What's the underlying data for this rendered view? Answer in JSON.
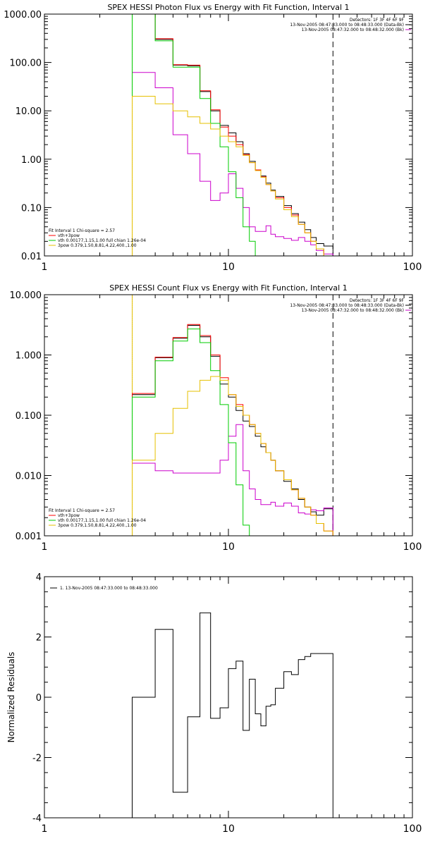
{
  "chart_data": [
    {
      "type": "line",
      "title": "SPEX HESSI Photon Flux vs Energy with Fit Function, Interval 1",
      "xscale": "log",
      "yscale": "log",
      "xlim": [
        1,
        100
      ],
      "ylim": [
        0.01,
        1000
      ],
      "x_ticks": [
        1,
        10,
        100
      ],
      "x_tick_labels": [
        "1",
        "10",
        "100"
      ],
      "y_ticks": [
        0.01,
        0.1,
        1,
        10,
        100,
        1000
      ],
      "y_tick_labels": [
        "0.01",
        "0.10",
        "1.00",
        "10.00",
        "100.00",
        "1000.00"
      ],
      "header_lines": [
        "Detectors: 1F 3F 4F 6F 9F",
        "13-Nov-2005 08:47:33.000 to 08:48:33.000 (Data-Bk)",
        "13-Nov-2005 08:47:32.000 to 08:48:32.000 (Bk)"
      ],
      "header_colors": [
        "",
        "#000000",
        "#cc00cc"
      ],
      "fit_info": [
        "Fit Interval 1   Chi-square = 2.57",
        "vth+3pow",
        "vth 0.00177,1.15,1.00  full chian 1.26e-04",
        "3pow 0.379,1.50,8.81,4.22,400.,1.00"
      ],
      "fit_info_colors": [
        "#000000",
        "#ff0000",
        "#00cc00",
        "#e6c000"
      ],
      "vlines": [
        {
          "x": 3,
          "style": "dotted",
          "color": "#000000"
        },
        {
          "x": 3,
          "style": "solid",
          "color": "#e6c000"
        },
        {
          "x": 37,
          "style": "dashed",
          "color": "#000000"
        }
      ],
      "edges": [
        3,
        4,
        5,
        6,
        7,
        8,
        9,
        10,
        11,
        12,
        13,
        14,
        15,
        16,
        17,
        18,
        20,
        22,
        24,
        26,
        28,
        30,
        33,
        37
      ],
      "series": [
        {
          "name": "Data-Bk",
          "color": "#000000",
          "values": [
            1000,
            300,
            88,
            85,
            25,
            10,
            5.0,
            3.5,
            2.3,
            1.3,
            0.9,
            0.6,
            0.45,
            0.32,
            0.23,
            0.17,
            0.11,
            0.075,
            0.05,
            0.035,
            0.024,
            0.018,
            0.016
          ]
        },
        {
          "name": "Bk",
          "color": "#cc00cc",
          "values": [
            62,
            30,
            3.2,
            1.3,
            0.35,
            0.14,
            0.2,
            0.5,
            0.25,
            0.1,
            0.04,
            0.032,
            0.032,
            0.042,
            0.028,
            0.025,
            0.023,
            0.021,
            0.024,
            0.02,
            0.017,
            0.013,
            0.011
          ]
        },
        {
          "name": "vth+3pow",
          "color": "#ff0000",
          "values": [
            1000,
            310,
            90,
            88,
            26,
            10.5,
            4.6,
            3.0,
            2.0,
            1.25,
            0.85,
            0.6,
            0.43,
            0.3,
            0.22,
            0.16,
            0.1,
            0.07,
            0.045,
            0.03,
            0.02,
            0.014,
            0.01
          ]
        },
        {
          "name": "vth",
          "color": "#00cc00",
          "values": [
            1000,
            280,
            80,
            80,
            18,
            5.5,
            1.8,
            0.55,
            0.16,
            0.04,
            0.02,
            0.01
          ]
        },
        {
          "name": "3pow",
          "color": "#e6c000",
          "values": [
            20,
            14,
            10,
            7.5,
            5.5,
            4.2,
            3.0,
            2.3,
            1.8,
            1.2,
            0.85,
            0.58,
            0.42,
            0.3,
            0.22,
            0.15,
            0.09,
            0.065,
            0.045,
            0.03,
            0.02,
            0.014,
            0.01
          ]
        }
      ]
    },
    {
      "type": "line",
      "title": "SPEX HESSI Count Flux vs Energy with Fit Function, Interval 1",
      "xscale": "log",
      "yscale": "log",
      "xlim": [
        1,
        100
      ],
      "ylim": [
        0.001,
        10
      ],
      "x_ticks": [
        1,
        10,
        100
      ],
      "x_tick_labels": [
        "1",
        "10",
        "100"
      ],
      "y_ticks": [
        0.001,
        0.01,
        0.1,
        1,
        10
      ],
      "y_tick_labels": [
        "0.001",
        "0.010",
        "0.100",
        "1.000",
        "10.000"
      ],
      "header_lines": [
        "Detectors: 1F 3F 4F 6F 9F",
        "13-Nov-2005 08:47:33.000 to 08:48:33.000 (Data-Bk)",
        "13-Nov-2005 08:47:32.000 to 08:48:32.000 (Bk)"
      ],
      "header_colors": [
        "",
        "#000000",
        "#cc00cc"
      ],
      "fit_info": [
        "Fit Interval 1   Chi-square = 2.57",
        "vth+3pow",
        "vth 0.00177,1.15,1.00  full chian 1.26e-04",
        "3pow 0.379,1.50,8.81,4.22,400.,1.00"
      ],
      "fit_info_colors": [
        "#000000",
        "#ff0000",
        "#00cc00",
        "#e6c000"
      ],
      "vlines": [
        {
          "x": 3,
          "style": "dotted",
          "color": "#000000"
        },
        {
          "x": 3,
          "style": "solid",
          "color": "#e6c000"
        },
        {
          "x": 37,
          "style": "dashed",
          "color": "#000000"
        }
      ],
      "edges": [
        3,
        4,
        5,
        6,
        7,
        8,
        9,
        10,
        11,
        12,
        13,
        14,
        15,
        16,
        17,
        18,
        20,
        22,
        24,
        26,
        28,
        30,
        33,
        37
      ],
      "series": [
        {
          "name": "Data-Bk",
          "color": "#000000",
          "values": [
            0.22,
            0.9,
            1.9,
            3.1,
            2.0,
            0.95,
            0.33,
            0.2,
            0.12,
            0.08,
            0.065,
            0.045,
            0.03,
            0.024,
            0.018,
            0.012,
            0.008,
            0.006,
            0.004,
            0.003,
            0.0025,
            0.0022,
            0.0028
          ]
        },
        {
          "name": "Bk",
          "color": "#cc00cc",
          "values": [
            0.016,
            0.012,
            0.011,
            0.011,
            0.011,
            0.011,
            0.018,
            0.045,
            0.07,
            0.012,
            0.006,
            0.004,
            0.0033,
            0.0033,
            0.0036,
            0.0031,
            0.0035,
            0.0031,
            0.0024,
            0.0023,
            0.0027,
            0.0026,
            0.0029
          ]
        },
        {
          "name": "vth+3pow",
          "color": "#ff0000",
          "values": [
            0.23,
            0.92,
            1.95,
            3.2,
            2.1,
            1.0,
            0.42,
            0.22,
            0.15,
            0.1,
            0.07,
            0.05,
            0.034,
            0.024,
            0.018,
            0.012,
            0.0085,
            0.0058,
            0.0042,
            0.003,
            0.0022,
            0.0016,
            0.0012
          ]
        },
        {
          "name": "vth",
          "color": "#00cc00",
          "values": [
            0.2,
            0.8,
            1.7,
            2.7,
            1.6,
            0.55,
            0.15,
            0.035,
            0.007,
            0.0015
          ]
        },
        {
          "name": "3pow",
          "color": "#e6c000",
          "values": [
            0.018,
            0.05,
            0.13,
            0.25,
            0.38,
            0.44,
            0.38,
            0.22,
            0.14,
            0.1,
            0.07,
            0.05,
            0.034,
            0.024,
            0.018,
            0.012,
            0.0085,
            0.0058,
            0.0042,
            0.003,
            0.0022,
            0.0016,
            0.0012
          ]
        }
      ]
    },
    {
      "type": "line",
      "title": "",
      "xscale": "log",
      "yscale": "linear",
      "xlim": [
        1,
        100
      ],
      "ylim": [
        -4,
        4
      ],
      "ylabel": "Normalized Residuals",
      "x_ticks": [
        1,
        10,
        100
      ],
      "x_tick_labels": [
        "1",
        "10",
        "100"
      ],
      "y_ticks": [
        -4,
        -2,
        0,
        2,
        4
      ],
      "y_tick_labels": [
        "-4",
        "-2",
        "0",
        "2",
        "4"
      ],
      "legend": "1. 13-Nov-2005 08:47:33.000 to 08:48:33.000",
      "edges": [
        3,
        4,
        5,
        6,
        7,
        8,
        9,
        10,
        11,
        12,
        13,
        14,
        15,
        16,
        17,
        18,
        20,
        22,
        24,
        26,
        28,
        30,
        33,
        37
      ],
      "series": [
        {
          "name": "1. 13-Nov-2005 08:47:33.000 to 08:48:33.000",
          "color": "#000000",
          "values": [
            0.0,
            2.25,
            -3.15,
            -0.65,
            2.8,
            -0.7,
            -0.35,
            0.95,
            1.2,
            -1.1,
            0.6,
            -0.55,
            -0.95,
            -0.3,
            -0.25,
            0.3,
            0.85,
            0.75,
            1.25,
            1.35,
            1.45,
            1.45,
            1.45
          ]
        }
      ]
    }
  ]
}
